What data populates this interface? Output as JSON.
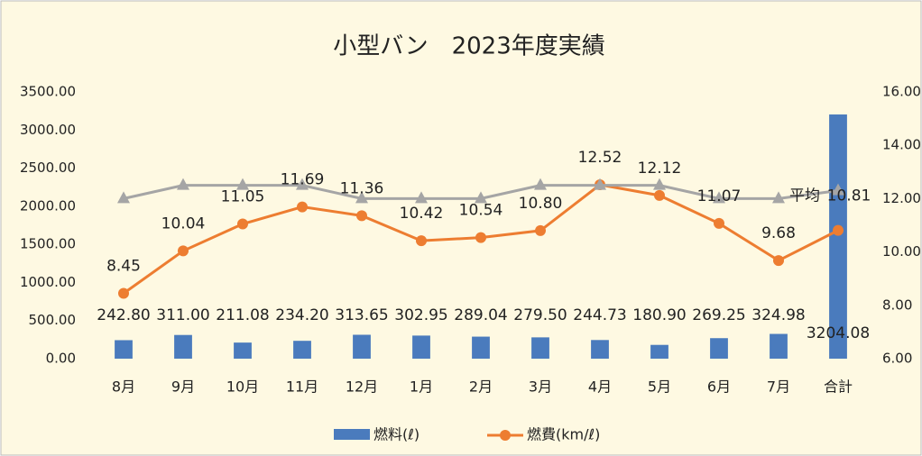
{
  "chart_data": {
    "type": "bar-line",
    "title": "小型バン　2023年度実績",
    "categories": [
      "8月",
      "9月",
      "10月",
      "11月",
      "12月",
      "1月",
      "2月",
      "3月",
      "4月",
      "5月",
      "6月",
      "7月",
      "合計"
    ],
    "series": [
      {
        "name": "燃料(ℓ)",
        "type": "bar",
        "color": "#4a7bbd",
        "axis": "y",
        "values": [
          242.8,
          311.0,
          211.08,
          234.2,
          313.65,
          302.95,
          289.04,
          279.5,
          244.73,
          180.9,
          269.25,
          324.98,
          3204.08
        ],
        "value_labels": [
          "242.80",
          "311.00",
          "211.08",
          "234.20",
          "313.65",
          "302.95",
          "289.04",
          "279.50",
          "244.73",
          "180.90",
          "269.25",
          "324.98",
          "3204.08"
        ]
      },
      {
        "name": "燃費(km/ℓ)",
        "type": "line",
        "color": "#ed7d31",
        "axis": "y2",
        "values": [
          8.45,
          10.04,
          11.05,
          11.69,
          11.36,
          10.42,
          10.54,
          10.8,
          12.52,
          12.12,
          11.07,
          9.68,
          10.81
        ],
        "value_labels": [
          "8.45",
          "10.04",
          "11.05",
          "11.69",
          "11.36",
          "10.42",
          "10.54",
          "10.80",
          "12.52",
          "12.12",
          "11.07",
          "9.68",
          "10.81"
        ]
      },
      {
        "type": "line",
        "marker": "triangle",
        "color": "#a5a5a5",
        "axis": "y2",
        "values": [
          12.0,
          12.5,
          12.5,
          12.5,
          12.0,
          12.0,
          12.0,
          12.5,
          12.5,
          12.5,
          12.0,
          12.0,
          12.3
        ]
      }
    ],
    "annotation": "平均",
    "ylim": [
      0,
      3500
    ],
    "yticks": [
      {
        "value": 0,
        "label": "0.00"
      },
      {
        "value": 500,
        "label": "500.00"
      },
      {
        "value": 1000,
        "label": "1000.00"
      },
      {
        "value": 1500,
        "label": "1500.00"
      },
      {
        "value": 2000,
        "label": "2000.00"
      },
      {
        "value": 2500,
        "label": "2500.00"
      },
      {
        "value": 3000,
        "label": "3000.00"
      },
      {
        "value": 3500,
        "label": "3500.00"
      }
    ],
    "y2lim": [
      6,
      16
    ],
    "y2ticks": [
      {
        "value": 6,
        "label": "6.00"
      },
      {
        "value": 8,
        "label": "8.00"
      },
      {
        "value": 10,
        "label": "10.00"
      },
      {
        "value": 12,
        "label": "12.00"
      },
      {
        "value": 14,
        "label": "14.00"
      },
      {
        "value": 16,
        "label": "16.00"
      }
    ],
    "grid": false,
    "legend": "bottom"
  }
}
